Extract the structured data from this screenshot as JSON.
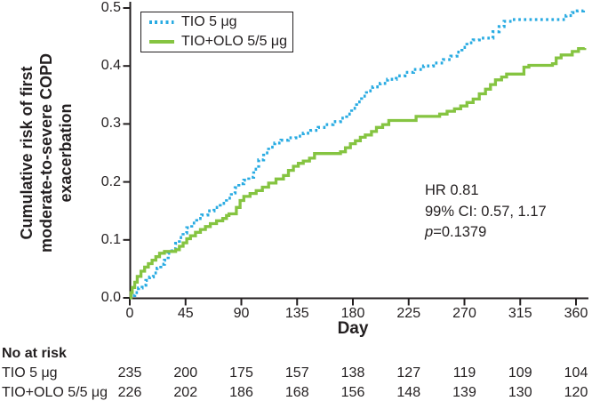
{
  "chart_data": {
    "type": "line",
    "subtype": "kaplan-meier-step",
    "title": "",
    "xlabel": "Day",
    "ylabel": "Cumulative risk of first moderate-to-severe COPD exacerbation",
    "ylabel_lines": [
      "Cumulative risk of first",
      "moderate-to-severe COPD",
      "exacerbation"
    ],
    "xlim": [
      0,
      372
    ],
    "ylim": [
      0,
      0.5
    ],
    "x_ticks": [
      "0",
      "45",
      "90",
      "135",
      "180",
      "225",
      "270",
      "315",
      "360"
    ],
    "y_ticks": [
      "0.0",
      "0.1",
      "0.2",
      "0.3",
      "0.4",
      "0.5"
    ],
    "grid": false,
    "legend_position": "upper-left",
    "annotation": [
      "HR 0.81",
      "99% CI: 0.57, 1.17"
    ],
    "annotation_p": {
      "label": "p",
      "value": "=0.1379"
    },
    "series": [
      {
        "name": "TIO 5 μg",
        "color": "#29abe2",
        "line_style": "dotted",
        "points": [
          [
            0,
            0
          ],
          [
            2,
            0.004
          ],
          [
            4,
            0.009
          ],
          [
            7,
            0.017
          ],
          [
            10,
            0.022
          ],
          [
            13,
            0.03
          ],
          [
            16,
            0.036
          ],
          [
            19,
            0.043
          ],
          [
            22,
            0.051
          ],
          [
            25,
            0.058
          ],
          [
            28,
            0.065
          ],
          [
            31,
            0.077
          ],
          [
            34,
            0.085
          ],
          [
            37,
            0.094
          ],
          [
            40,
            0.104
          ],
          [
            43,
            0.112
          ],
          [
            46,
            0.121
          ],
          [
            50,
            0.129
          ],
          [
            54,
            0.137
          ],
          [
            58,
            0.143
          ],
          [
            63,
            0.15
          ],
          [
            68,
            0.156
          ],
          [
            73,
            0.163
          ],
          [
            78,
            0.172
          ],
          [
            82,
            0.181
          ],
          [
            85,
            0.19
          ],
          [
            88,
            0.197
          ],
          [
            92,
            0.203
          ],
          [
            96,
            0.208
          ],
          [
            100,
            0.222
          ],
          [
            104,
            0.238
          ],
          [
            108,
            0.25
          ],
          [
            112,
            0.26
          ],
          [
            117,
            0.267
          ],
          [
            122,
            0.272
          ],
          [
            128,
            0.276
          ],
          [
            134,
            0.279
          ],
          [
            140,
            0.284
          ],
          [
            146,
            0.289
          ],
          [
            152,
            0.294
          ],
          [
            158,
            0.299
          ],
          [
            164,
            0.304
          ],
          [
            170,
            0.31
          ],
          [
            175,
            0.317
          ],
          [
            179,
            0.327
          ],
          [
            183,
            0.338
          ],
          [
            187,
            0.348
          ],
          [
            191,
            0.357
          ],
          [
            196,
            0.364
          ],
          [
            202,
            0.37
          ],
          [
            208,
            0.377
          ],
          [
            215,
            0.383
          ],
          [
            222,
            0.389
          ],
          [
            229,
            0.394
          ],
          [
            237,
            0.4
          ],
          [
            245,
            0.405
          ],
          [
            253,
            0.411
          ],
          [
            259,
            0.417
          ],
          [
            264,
            0.424
          ],
          [
            268,
            0.432
          ],
          [
            272,
            0.44
          ],
          [
            277,
            0.445
          ],
          [
            282,
            0.448
          ],
          [
            293,
            0.459
          ],
          [
            298,
            0.468
          ],
          [
            302,
            0.477
          ],
          [
            308,
            0.48
          ],
          [
            352,
            0.487
          ],
          [
            357,
            0.492
          ],
          [
            361,
            0.495
          ],
          [
            366,
            0.497
          ]
        ]
      },
      {
        "name": "TIO+OLO 5/5 μg",
        "color": "#85c441",
        "line_style": "solid",
        "points": [
          [
            0,
            0
          ],
          [
            1,
            0.009
          ],
          [
            2,
            0.018
          ],
          [
            4,
            0.027
          ],
          [
            6,
            0.037
          ],
          [
            9,
            0.046
          ],
          [
            12,
            0.053
          ],
          [
            15,
            0.059
          ],
          [
            18,
            0.065
          ],
          [
            21,
            0.071
          ],
          [
            24,
            0.077
          ],
          [
            28,
            0.08
          ],
          [
            37,
            0.083
          ],
          [
            40,
            0.089
          ],
          [
            43,
            0.095
          ],
          [
            46,
            0.102
          ],
          [
            49,
            0.107
          ],
          [
            53,
            0.113
          ],
          [
            57,
            0.118
          ],
          [
            61,
            0.123
          ],
          [
            65,
            0.128
          ],
          [
            70,
            0.133
          ],
          [
            75,
            0.137
          ],
          [
            78,
            0.142
          ],
          [
            80,
            0.145
          ],
          [
            86,
            0.156
          ],
          [
            89,
            0.168
          ],
          [
            92,
            0.175
          ],
          [
            97,
            0.18
          ],
          [
            102,
            0.185
          ],
          [
            107,
            0.191
          ],
          [
            112,
            0.198
          ],
          [
            118,
            0.205
          ],
          [
            124,
            0.211
          ],
          [
            128,
            0.22
          ],
          [
            132,
            0.227
          ],
          [
            136,
            0.232
          ],
          [
            140,
            0.236
          ],
          [
            145,
            0.241
          ],
          [
            149,
            0.249
          ],
          [
            170,
            0.252
          ],
          [
            174,
            0.259
          ],
          [
            178,
            0.266
          ],
          [
            182,
            0.271
          ],
          [
            186,
            0.277
          ],
          [
            190,
            0.281
          ],
          [
            195,
            0.287
          ],
          [
            199,
            0.294
          ],
          [
            204,
            0.299
          ],
          [
            209,
            0.306
          ],
          [
            231,
            0.313
          ],
          [
            250,
            0.317
          ],
          [
            256,
            0.322
          ],
          [
            262,
            0.326
          ],
          [
            267,
            0.331
          ],
          [
            272,
            0.337
          ],
          [
            277,
            0.343
          ],
          [
            282,
            0.352
          ],
          [
            287,
            0.36
          ],
          [
            291,
            0.368
          ],
          [
            295,
            0.376
          ],
          [
            300,
            0.381
          ],
          [
            304,
            0.386
          ],
          [
            318,
            0.398
          ],
          [
            322,
            0.401
          ],
          [
            341,
            0.404
          ],
          [
            344,
            0.414
          ],
          [
            348,
            0.419
          ],
          [
            357,
            0.425
          ],
          [
            362,
            0.43
          ],
          [
            367,
            0.431
          ]
        ]
      }
    ]
  },
  "at_risk": {
    "title": "No at risk",
    "rows": [
      {
        "label": "TIO 5 μg",
        "counts": [
          "235",
          "200",
          "175",
          "157",
          "138",
          "127",
          "119",
          "109",
          "104"
        ]
      },
      {
        "label": "TIO+OLO 5/5 μg",
        "counts": [
          "226",
          "202",
          "186",
          "168",
          "156",
          "148",
          "139",
          "130",
          "120"
        ]
      }
    ]
  },
  "colors": {
    "tio": "#29abe2",
    "tio_olo": "#85c441",
    "axis": "#231f20"
  }
}
